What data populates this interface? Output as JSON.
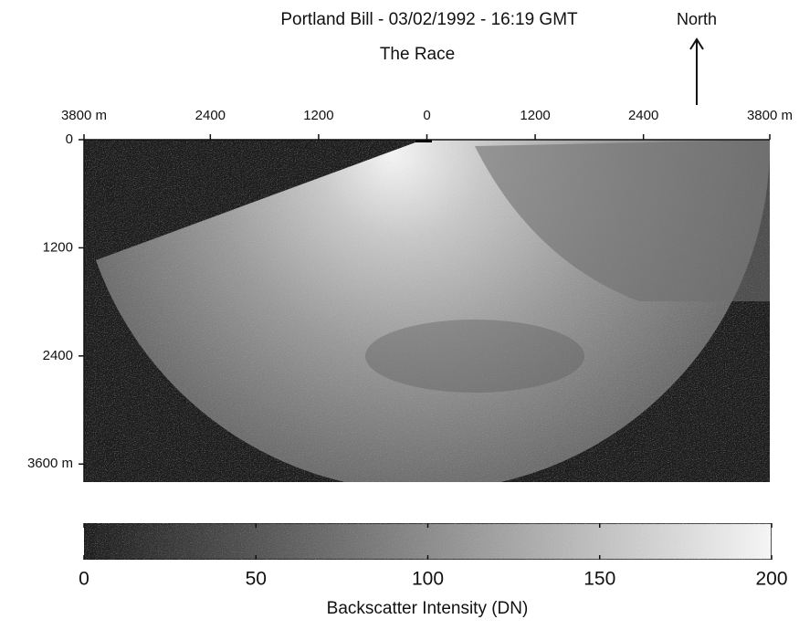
{
  "chart_data": {
    "type": "image",
    "title": "Portland Bill - 03/02/1992 - 16:19 GMT",
    "subtitle": "The Race",
    "annotation": "North",
    "xlim": [
      -3800,
      3800
    ],
    "xticks": [
      {
        "value": -3800,
        "label": "3800 m"
      },
      {
        "value": -2400,
        "label": "2400"
      },
      {
        "value": -1200,
        "label": "1200"
      },
      0,
      1200,
      2400,
      {
        "value": 3800,
        "label": "3800 m"
      }
    ],
    "ylim": [
      0,
      3800
    ],
    "yticks": [
      0,
      1200,
      2400,
      {
        "value": 3600,
        "label": "3600 m"
      }
    ],
    "colorbar": {
      "label": "Backscatter Intensity (DN)",
      "lim": [
        0,
        200
      ],
      "ticks": [
        0,
        50,
        100,
        150,
        200
      ]
    }
  }
}
